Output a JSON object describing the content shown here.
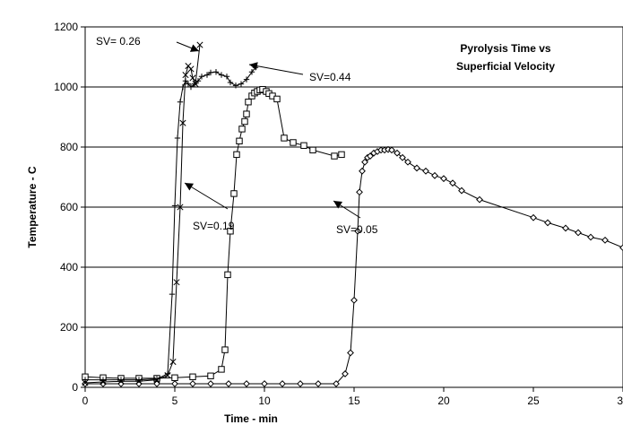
{
  "chart_data": {
    "type": "line",
    "title": "Pyrolysis Time vs Superficial Velocity",
    "title_lines": [
      "Pyrolysis Time vs",
      "Superficial Velocity"
    ],
    "xlabel": "Time - min",
    "ylabel": "Temperature - C",
    "xlim": [
      0,
      30
    ],
    "ylim": [
      0,
      1200
    ],
    "xticks": [
      0,
      5,
      10,
      15,
      20,
      25,
      30
    ],
    "yticks": [
      0,
      200,
      400,
      600,
      800,
      1000,
      1200
    ],
    "grid": "horizontal",
    "legend": "none",
    "series": [
      {
        "name": "SV=0.05",
        "marker": "diamond",
        "points": [
          [
            0,
            12
          ],
          [
            1,
            12
          ],
          [
            2,
            12
          ],
          [
            3,
            12
          ],
          [
            4,
            12
          ],
          [
            5,
            12
          ],
          [
            6,
            12
          ],
          [
            7,
            12
          ],
          [
            8,
            12
          ],
          [
            9,
            12
          ],
          [
            10,
            12
          ],
          [
            11,
            12
          ],
          [
            12,
            12
          ],
          [
            13,
            12
          ],
          [
            14,
            12
          ],
          [
            14.5,
            45
          ],
          [
            14.8,
            115
          ],
          [
            15.0,
            290
          ],
          [
            15.2,
            520
          ],
          [
            15.3,
            650
          ],
          [
            15.45,
            720
          ],
          [
            15.6,
            750
          ],
          [
            15.75,
            765
          ],
          [
            15.9,
            770
          ],
          [
            16.1,
            780
          ],
          [
            16.3,
            785
          ],
          [
            16.5,
            790
          ],
          [
            16.7,
            790
          ],
          [
            16.9,
            792
          ],
          [
            17.1,
            790
          ],
          [
            17.4,
            780
          ],
          [
            17.7,
            765
          ],
          [
            18.0,
            750
          ],
          [
            18.5,
            730
          ],
          [
            19.0,
            720
          ],
          [
            19.5,
            705
          ],
          [
            20.0,
            695
          ],
          [
            20.5,
            680
          ],
          [
            21.0,
            655
          ],
          [
            22.0,
            625
          ],
          [
            25.0,
            565
          ],
          [
            25.8,
            548
          ],
          [
            26.8,
            530
          ],
          [
            27.5,
            515
          ],
          [
            28.2,
            500
          ],
          [
            29.0,
            490
          ],
          [
            30.0,
            465
          ]
        ]
      },
      {
        "name": "SV=0.19",
        "marker": "square",
        "points": [
          [
            0,
            35
          ],
          [
            1,
            32
          ],
          [
            2,
            30
          ],
          [
            3,
            30
          ],
          [
            4,
            30
          ],
          [
            5,
            32
          ],
          [
            6,
            35
          ],
          [
            7,
            38
          ],
          [
            7.6,
            60
          ],
          [
            7.8,
            125
          ],
          [
            7.95,
            375
          ],
          [
            8.1,
            520
          ],
          [
            8.3,
            645
          ],
          [
            8.45,
            775
          ],
          [
            8.6,
            820
          ],
          [
            8.75,
            860
          ],
          [
            8.9,
            885
          ],
          [
            9.0,
            910
          ],
          [
            9.1,
            950
          ],
          [
            9.3,
            970
          ],
          [
            9.45,
            980
          ],
          [
            9.6,
            985
          ],
          [
            9.75,
            990
          ],
          [
            9.9,
            992
          ],
          [
            10.1,
            985
          ],
          [
            10.25,
            978
          ],
          [
            10.45,
            970
          ],
          [
            10.7,
            960
          ],
          [
            11.1,
            830
          ],
          [
            11.6,
            815
          ],
          [
            12.2,
            805
          ],
          [
            12.7,
            790
          ],
          [
            13.9,
            770
          ],
          [
            14.3,
            775
          ]
        ]
      },
      {
        "name": "SV=0.26",
        "marker": "plus",
        "points": [
          [
            0,
            25
          ],
          [
            1,
            25
          ],
          [
            2,
            25
          ],
          [
            3,
            25
          ],
          [
            4,
            28
          ],
          [
            4.6,
            45
          ],
          [
            4.85,
            310
          ],
          [
            5.0,
            605
          ],
          [
            5.15,
            830
          ],
          [
            5.3,
            950
          ],
          [
            5.45,
            1000
          ],
          [
            5.6,
            1020
          ],
          [
            5.75,
            1010
          ],
          [
            5.9,
            1000
          ],
          [
            6.1,
            1010
          ],
          [
            6.3,
            1020
          ],
          [
            6.5,
            1035
          ],
          [
            6.8,
            1040
          ],
          [
            7.0,
            1048
          ],
          [
            7.3,
            1050
          ],
          [
            7.6,
            1040
          ],
          [
            7.9,
            1035
          ],
          [
            8.1,
            1015
          ],
          [
            8.4,
            1005
          ],
          [
            8.7,
            1010
          ],
          [
            9.0,
            1025
          ],
          [
            9.3,
            1050
          ],
          [
            9.5,
            1065
          ]
        ]
      },
      {
        "name": "SV= 0.26",
        "marker": "x",
        "points": [
          [
            0,
            15
          ],
          [
            1,
            18
          ],
          [
            2,
            20
          ],
          [
            3,
            20
          ],
          [
            4,
            25
          ],
          [
            4.6,
            40
          ],
          [
            4.9,
            85
          ],
          [
            5.1,
            350
          ],
          [
            5.3,
            600
          ],
          [
            5.45,
            880
          ],
          [
            5.6,
            1040
          ],
          [
            5.75,
            1070
          ],
          [
            5.9,
            1060
          ],
          [
            6.0,
            1030
          ],
          [
            6.15,
            1010
          ],
          [
            6.4,
            1140
          ]
        ]
      }
    ],
    "annotations": [
      {
        "text": "SV= 0.26",
        "x": 2.5,
        "y": 1140
      },
      {
        "text": "SV=0.44",
        "x": 13.0,
        "y": 1030
      },
      {
        "text": "SV=0.19",
        "x": 6.2,
        "y": 540
      },
      {
        "text": "SV=0.05",
        "x": 14.2,
        "y": 510
      }
    ]
  }
}
